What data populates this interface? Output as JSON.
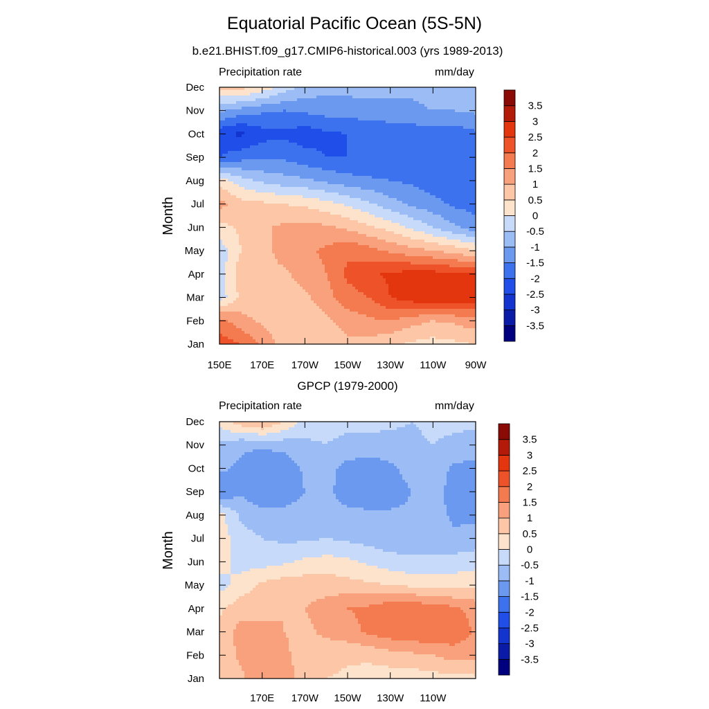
{
  "title": "Equatorial Pacific Ocean (5S-5N)",
  "subtitle": "b.e21.BHIST.f09_g17.CMIP6-historical.003 (yrs 1989-2013)",
  "colorbar": {
    "levels": [
      -3.5,
      -3,
      -2.5,
      -2,
      -1.5,
      -1,
      -0.5,
      0,
      0.5,
      1,
      1.5,
      2,
      2.5,
      3,
      3.5
    ],
    "labels": [
      "-3.5",
      "-3",
      "-2.5",
      "-2",
      "-1.5",
      "-1",
      "-0.5",
      "0",
      "0.5",
      "1",
      "1.5",
      "2",
      "2.5",
      "3",
      "3.5"
    ],
    "colors": [
      "#00007f",
      "#0a1ba8",
      "#1434d0",
      "#1f4ee8",
      "#3c72ee",
      "#6b99f0",
      "#9bbcf4",
      "#c8dafa",
      "#fde2cc",
      "#fcc6a7",
      "#f9a07c",
      "#f47a50",
      "#ee5228",
      "#e3360f",
      "#b31a08",
      "#8a0a05"
    ]
  },
  "chart_data": [
    {
      "type": "heatmap",
      "title": "",
      "left_label": "Precipitation rate",
      "right_label": "mm/day",
      "xlabel": "",
      "ylabel": "Month",
      "xlim": [
        150,
        270
      ],
      "x_tick_labels": [
        "150E",
        "170E",
        "170W",
        "150W",
        "130W",
        "110W",
        "90W"
      ],
      "x_tick_values": [
        150,
        170,
        190,
        210,
        230,
        250,
        270
      ],
      "y_tick_labels": [
        "Jan",
        "Feb",
        "Mar",
        "Apr",
        "May",
        "Jun",
        "Jul",
        "Aug",
        "Sep",
        "Oct",
        "Nov",
        "Dec"
      ],
      "x": [
        150,
        160,
        170,
        180,
        190,
        200,
        210,
        220,
        230,
        240,
        250,
        260,
        270
      ],
      "values": [
        [
          2.3,
          2.0,
          1.4,
          0.8,
          0.9,
          0.7,
          0.9,
          0.8,
          0.6,
          0.4,
          0.3,
          0.4,
          0.5
        ],
        [
          1.7,
          1.2,
          0.9,
          0.6,
          0.6,
          0.9,
          1.2,
          1.4,
          1.5,
          1.2,
          1.0,
          1.1,
          1.3
        ],
        [
          -0.3,
          0.6,
          0.6,
          0.7,
          0.9,
          1.3,
          1.8,
          2.0,
          2.5,
          2.8,
          2.9,
          2.9,
          2.8
        ],
        [
          -0.3,
          0.8,
          0.9,
          0.9,
          1.2,
          1.5,
          2.1,
          2.4,
          2.6,
          2.7,
          2.7,
          2.6,
          2.5
        ],
        [
          -0.3,
          0.5,
          0.8,
          1.2,
          1.4,
          1.6,
          1.9,
          1.7,
          1.4,
          1.2,
          1.0,
          0.8,
          0.5
        ],
        [
          0.3,
          0.6,
          0.9,
          1.1,
          1.2,
          1.1,
          0.9,
          0.6,
          0.3,
          -0.1,
          -0.5,
          -0.9,
          -1.3
        ],
        [
          1.2,
          0.7,
          0.6,
          0.5,
          0.4,
          0.2,
          -0.1,
          -0.4,
          -0.8,
          -1.1,
          -1.3,
          -1.6,
          -1.7
        ],
        [
          0.3,
          -0.3,
          -0.6,
          -0.8,
          -0.9,
          -1.1,
          -1.3,
          -1.4,
          -1.5,
          -1.6,
          -1.8,
          -1.9,
          -1.8
        ],
        [
          -2.0,
          -1.7,
          -1.6,
          -1.6,
          -1.8,
          -2.0,
          -2.0,
          -2.0,
          -1.9,
          -1.8,
          -1.7,
          -1.6,
          -1.5
        ],
        [
          -2.4,
          -2.6,
          -2.2,
          -2.1,
          -2.3,
          -2.1,
          -2.0,
          -1.9,
          -1.8,
          -1.8,
          -1.7,
          -1.8,
          -1.6
        ],
        [
          -0.9,
          -1.2,
          -1.4,
          -1.5,
          -1.4,
          -1.3,
          -1.3,
          -1.2,
          -1.2,
          -1.1,
          -1.0,
          -1.0,
          -0.9
        ],
        [
          0.6,
          0.7,
          0.3,
          -0.2,
          -0.7,
          -0.8,
          -0.8,
          -0.8,
          -0.8,
          -0.9,
          -0.8,
          -0.7,
          -0.6
        ]
      ]
    },
    {
      "type": "heatmap",
      "title": "GPCP (1979-2000)",
      "left_label": "Precipitation rate",
      "right_label": "mm/day",
      "xlabel": "",
      "ylabel": "Month",
      "xlim": [
        150,
        270
      ],
      "x_tick_labels": [
        "170E",
        "170W",
        "150W",
        "130W",
        "110W"
      ],
      "x_tick_values": [
        170,
        190,
        210,
        230,
        250
      ],
      "y_tick_labels": [
        "Jan",
        "Feb",
        "Mar",
        "Apr",
        "May",
        "Jun",
        "Jul",
        "Aug",
        "Sep",
        "Oct",
        "Nov",
        "Dec"
      ],
      "x": [
        150,
        160,
        170,
        180,
        190,
        200,
        210,
        220,
        230,
        240,
        250,
        260,
        270
      ],
      "values": [
        [
          0.6,
          0.9,
          1.4,
          1.3,
          0.7,
          0.5,
          0.4,
          0.3,
          0.2,
          0.2,
          0.3,
          0.3,
          0.4
        ],
        [
          0.7,
          1.1,
          1.2,
          1.1,
          0.8,
          0.7,
          0.6,
          0.6,
          0.8,
          0.9,
          1.0,
          1.2,
          1.1
        ],
        [
          0.6,
          1.2,
          1.1,
          1.0,
          0.9,
          1.1,
          1.3,
          1.6,
          1.8,
          1.9,
          2.0,
          1.9,
          1.4
        ],
        [
          0.4,
          0.8,
          0.9,
          1.0,
          1.0,
          1.2,
          1.5,
          1.6,
          1.9,
          1.9,
          1.8,
          1.6,
          1.3
        ],
        [
          -0.2,
          0.2,
          0.6,
          0.8,
          0.8,
          0.8,
          0.7,
          0.6,
          0.5,
          0.4,
          0.3,
          0.3,
          0.4
        ],
        [
          0.2,
          -0.2,
          -0.2,
          -0.1,
          0.1,
          0.2,
          0.1,
          -0.1,
          -0.3,
          -0.4,
          -0.4,
          -0.3,
          -0.2
        ],
        [
          0.3,
          -0.3,
          -0.5,
          -0.6,
          -0.6,
          -0.5,
          -0.6,
          -0.7,
          -0.8,
          -0.8,
          -0.8,
          -0.9,
          -0.8
        ],
        [
          0.2,
          -0.6,
          -0.8,
          -0.8,
          -0.7,
          -0.8,
          -0.9,
          -0.9,
          -0.9,
          -0.9,
          -0.8,
          -1.1,
          -1.1
        ],
        [
          -1.5,
          -1.1,
          -1.4,
          -1.4,
          -1.0,
          -0.9,
          -1.2,
          -1.3,
          -1.3,
          -1.0,
          -0.8,
          -1.2,
          -1.3
        ],
        [
          -0.9,
          -1.1,
          -1.5,
          -1.4,
          -0.9,
          -0.8,
          -1.2,
          -1.3,
          -1.1,
          -0.8,
          -0.7,
          -1.1,
          -1.2
        ],
        [
          -0.6,
          -0.9,
          -0.9,
          -0.8,
          -0.6,
          -0.5,
          -0.6,
          -0.7,
          -0.7,
          -0.6,
          -0.5,
          -0.6,
          -0.7
        ],
        [
          0.2,
          0.8,
          1.1,
          0.5,
          -0.2,
          -0.4,
          -0.4,
          -0.3,
          -0.4,
          -0.5,
          -0.4,
          -0.4,
          -0.4
        ]
      ]
    }
  ]
}
